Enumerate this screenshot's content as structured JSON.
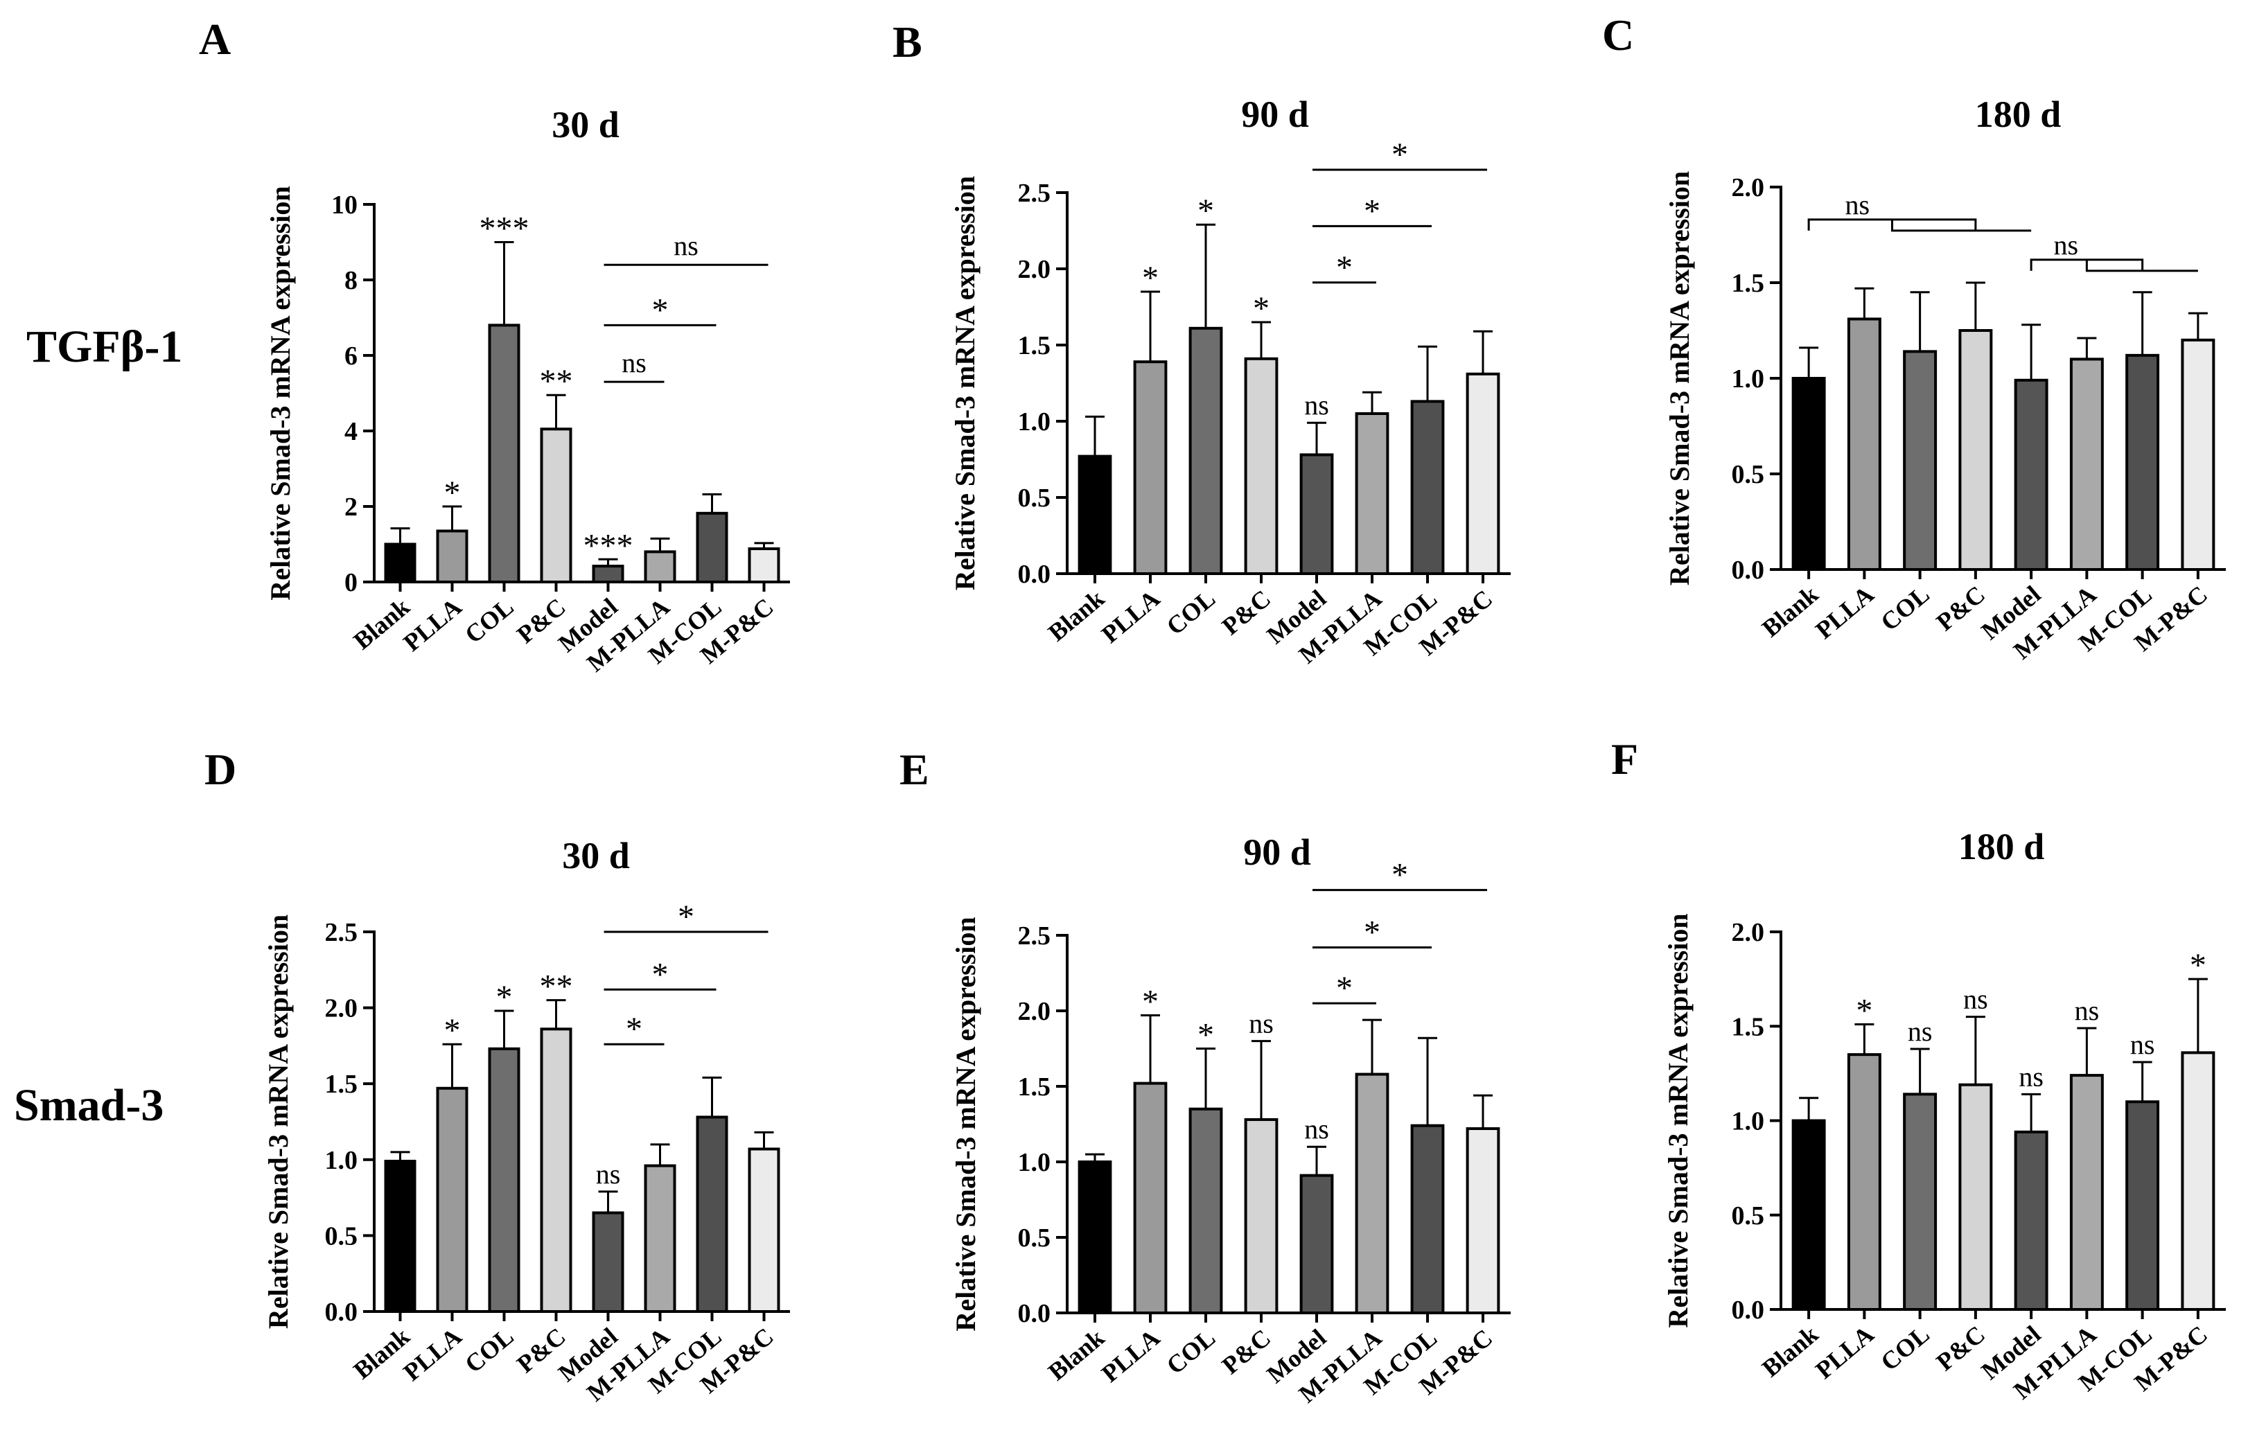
{
  "row_labels": [
    "TGFβ-1",
    "Smad-3"
  ],
  "colors": {
    "bar_fills": [
      "#000000",
      "#9a9a9a",
      "#6e6e6e",
      "#d4d4d4",
      "#555555",
      "#a9a9a9",
      "#505050",
      "#ebebeb"
    ],
    "stroke": "#000000"
  },
  "chart_data": [
    {
      "panel": "A",
      "type": "bar",
      "title": "30 d",
      "ylabel": "Relative Smad-3  mRNA expression",
      "ylim": [
        0,
        10
      ],
      "yticks": [
        "0",
        "2",
        "4",
        "6",
        "8",
        "10"
      ],
      "categories": [
        "Blank",
        "PLLA",
        "COL",
        "P&C",
        "Model",
        "M-PLLA",
        "M-COL",
        "M-P&C"
      ],
      "values": [
        1.0,
        1.35,
        6.8,
        4.05,
        0.42,
        0.8,
        1.82,
        0.88
      ],
      "errors": [
        0.42,
        0.65,
        2.2,
        0.9,
        0.18,
        0.35,
        0.5,
        0.15
      ],
      "bar_labels": [
        "",
        "*",
        "***",
        "**",
        "***",
        "",
        "",
        ""
      ],
      "brackets": [
        {
          "from": 4,
          "to": 5,
          "label": "ns",
          "level": 5.3
        },
        {
          "from": 4,
          "to": 6,
          "label": "*",
          "level": 6.8
        },
        {
          "from": 4,
          "to": 7,
          "label": "ns",
          "level": 8.4
        }
      ]
    },
    {
      "panel": "B",
      "type": "bar",
      "title": "90 d",
      "ylabel": "Relative Smad-3  mRNA expression",
      "ylim": [
        0,
        2.5
      ],
      "yticks": [
        "0.0",
        "0.5",
        "1.0",
        "1.5",
        "2.0",
        "2.5"
      ],
      "categories": [
        "Blank",
        "PLLA",
        "COL",
        "P&C",
        "Model",
        "M-PLLA",
        "M-COL",
        "M-P&C"
      ],
      "values": [
        0.77,
        1.39,
        1.61,
        1.41,
        0.78,
        1.05,
        1.13,
        1.31
      ],
      "errors": [
        0.26,
        0.46,
        0.68,
        0.24,
        0.21,
        0.14,
        0.36,
        0.28
      ],
      "bar_labels": [
        "",
        "*",
        "*",
        "*",
        "ns",
        "",
        "",
        ""
      ],
      "brackets": [
        {
          "from": 4,
          "to": 5,
          "label": "*",
          "level": 1.91
        },
        {
          "from": 4,
          "to": 6,
          "label": "*",
          "level": 2.28
        },
        {
          "from": 4,
          "to": 7,
          "label": "*",
          "level": 2.65
        }
      ]
    },
    {
      "panel": "C",
      "type": "bar",
      "title": "180 d",
      "ylabel": "Relative Smad-3  mRNA expression",
      "ylim": [
        0,
        2.0
      ],
      "yticks": [
        "0.0",
        "0.5",
        "1.0",
        "1.5",
        "2.0"
      ],
      "categories": [
        "Blank",
        "PLLA",
        "COL",
        "P&C",
        "Model",
        "M-PLLA",
        "M-COL",
        "M-P&C"
      ],
      "values": [
        1.0,
        1.31,
        1.14,
        1.25,
        0.99,
        1.1,
        1.12,
        1.2
      ],
      "errors": [
        0.16,
        0.16,
        0.31,
        0.25,
        0.29,
        0.11,
        0.33,
        0.14
      ],
      "bar_labels": [
        "",
        "",
        "",
        "",
        "",
        "",
        "",
        ""
      ],
      "brackets": [
        {
          "type": "group",
          "left": [
            0,
            3
          ],
          "right": 4,
          "label": "ns",
          "level": 1.83
        },
        {
          "type": "group",
          "left": [
            4,
            6
          ],
          "right": 7,
          "label": "ns",
          "level": 1.62
        }
      ]
    },
    {
      "panel": "D",
      "type": "bar",
      "title": "30 d",
      "ylabel": "Relative Smad-3  mRNA expression",
      "ylim": [
        0,
        2.5
      ],
      "yticks": [
        "0.0",
        "0.5",
        "1.0",
        "1.5",
        "2.0",
        "2.5"
      ],
      "categories": [
        "Blank",
        "PLLA",
        "COL",
        "P&C",
        "Model",
        "M-PLLA",
        "M-COL",
        "M-P&C"
      ],
      "values": [
        0.99,
        1.47,
        1.73,
        1.86,
        0.65,
        0.96,
        1.28,
        1.07
      ],
      "errors": [
        0.06,
        0.29,
        0.25,
        0.19,
        0.14,
        0.14,
        0.26,
        0.11
      ],
      "bar_labels": [
        "",
        "*",
        "*",
        "**",
        "ns",
        "",
        "",
        ""
      ],
      "brackets": [
        {
          "from": 4,
          "to": 5,
          "label": "*",
          "level": 1.76
        },
        {
          "from": 4,
          "to": 6,
          "label": "*",
          "level": 2.12
        },
        {
          "from": 4,
          "to": 7,
          "label": "*",
          "level": 2.5
        }
      ]
    },
    {
      "panel": "E",
      "type": "bar",
      "title": "90 d",
      "ylabel": "Relative Smad-3  mRNA expression",
      "ylim": [
        0,
        2.5
      ],
      "yticks": [
        "0.0",
        "0.5",
        "1.0",
        "1.5",
        "2.0",
        "2.5"
      ],
      "categories": [
        "Blank",
        "PLLA",
        "COL",
        "P&C",
        "Model",
        "M-PLLA",
        "M-COL",
        "M-P&C"
      ],
      "values": [
        1.0,
        1.52,
        1.35,
        1.28,
        0.91,
        1.58,
        1.24,
        1.22
      ],
      "errors": [
        0.05,
        0.45,
        0.4,
        0.52,
        0.19,
        0.36,
        0.58,
        0.22
      ],
      "bar_labels": [
        "",
        "*",
        "*",
        "ns",
        "ns",
        "",
        "",
        ""
      ],
      "brackets": [
        {
          "from": 4,
          "to": 5,
          "label": "*",
          "level": 2.05
        },
        {
          "from": 4,
          "to": 6,
          "label": "*",
          "level": 2.42
        },
        {
          "from": 4,
          "to": 7,
          "label": "*",
          "level": 2.8
        }
      ]
    },
    {
      "panel": "F",
      "type": "bar",
      "title": "180 d",
      "ylabel": "Relative Smad-3  mRNA expression",
      "ylim": [
        0,
        2.0
      ],
      "yticks": [
        "0.0",
        "0.5",
        "1.0",
        "1.5",
        "2.0"
      ],
      "categories": [
        "Blank",
        "PLLA",
        "COL",
        "P&C",
        "Model",
        "M-PLLA",
        "M-COL",
        "M-P&C"
      ],
      "values": [
        1.0,
        1.35,
        1.14,
        1.19,
        0.94,
        1.24,
        1.1,
        1.36
      ],
      "errors": [
        0.12,
        0.16,
        0.24,
        0.36,
        0.2,
        0.25,
        0.21,
        0.39
      ],
      "bar_labels": [
        "",
        "*",
        "ns",
        "ns",
        "ns",
        "ns",
        "ns",
        "*"
      ],
      "brackets": []
    }
  ]
}
